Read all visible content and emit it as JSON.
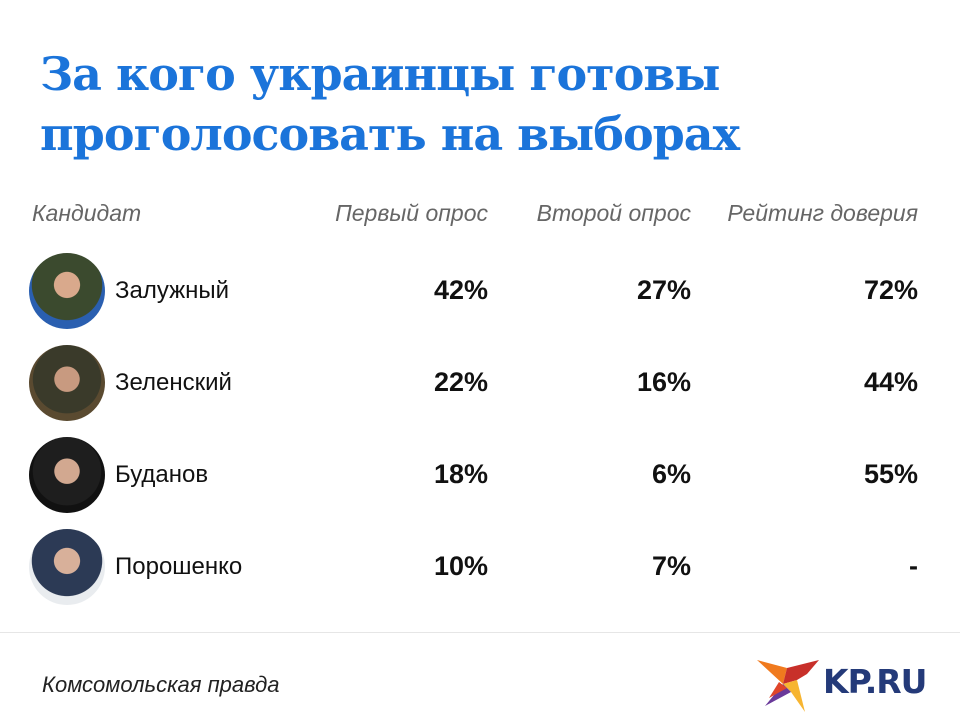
{
  "title_lines": [
    "За кого украинцы готовы",
    "проголосовать на выборах"
  ],
  "chart_data": {
    "type": "table",
    "title": "За кого украинцы готовы проголосовать на выборах",
    "columns": [
      "Кандидат",
      "Первый опрос",
      "Второй опрос",
      "Рейтинг доверия"
    ],
    "rows": [
      {
        "name": "Залужный",
        "values": [
          "42%",
          "27%",
          "72%"
        ]
      },
      {
        "name": "Зеленский",
        "values": [
          "22%",
          "16%",
          "44%"
        ]
      },
      {
        "name": "Буданов",
        "values": [
          "18%",
          "6%",
          "55%"
        ]
      },
      {
        "name": "Порошенко",
        "values": [
          "10%",
          "7%",
          "-"
        ]
      }
    ]
  },
  "footer": {
    "source": "Комсомольская правда",
    "logo_text": "KP.RU"
  },
  "colors": {
    "title": "#1b74da",
    "logo": "#243a79"
  }
}
